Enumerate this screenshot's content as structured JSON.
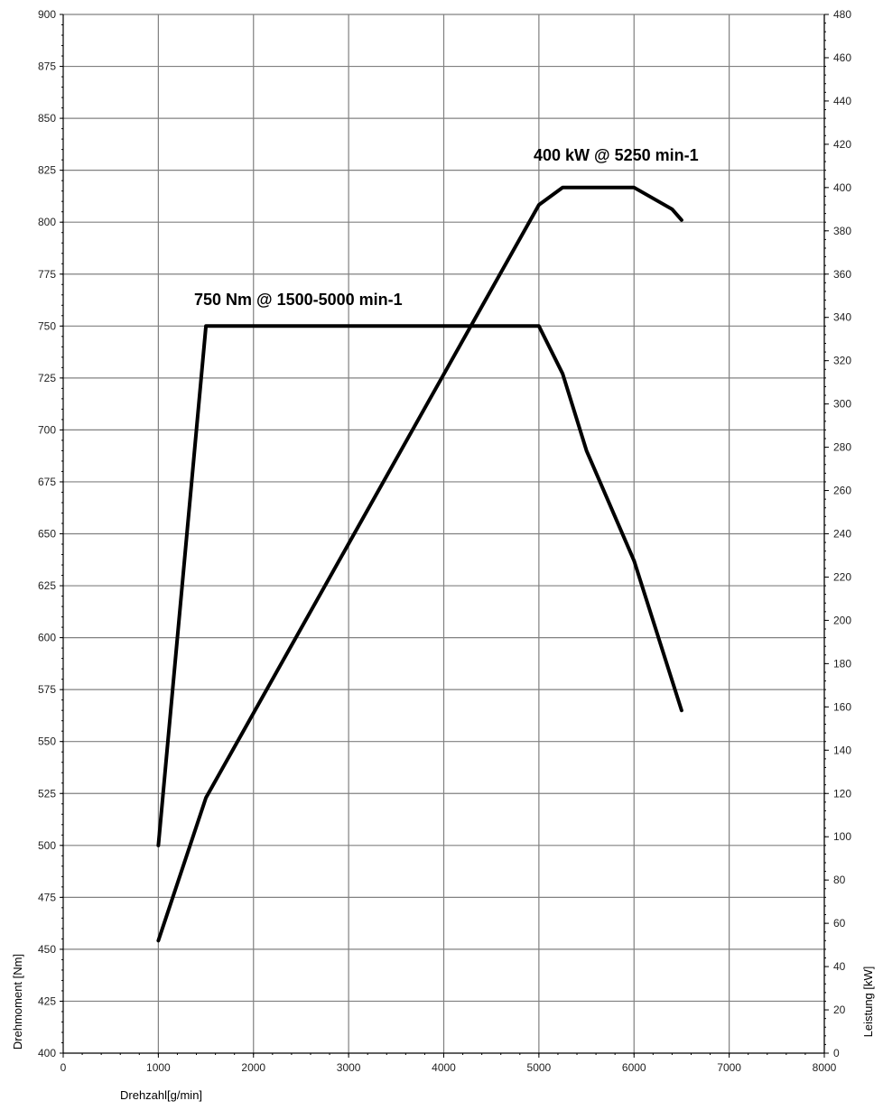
{
  "chart_data": {
    "type": "line",
    "title": "",
    "xlabel": "Drehzahl[g/min]",
    "ylabel_left": "Drehmoment [Nm]",
    "ylabel_right": "Leistung [kW]",
    "xlim": [
      0,
      8000
    ],
    "ylim_left": [
      400,
      900
    ],
    "ylim_right": [
      0,
      480
    ],
    "grid": true,
    "x_ticks": [
      "0",
      "1000",
      "2000",
      "3000",
      "4000",
      "5000",
      "6000",
      "7000",
      "8000"
    ],
    "y_left_ticks": [
      "400",
      "425",
      "450",
      "475",
      "500",
      "525",
      "550",
      "575",
      "600",
      "625",
      "650",
      "675",
      "700",
      "725",
      "750",
      "775",
      "800",
      "825",
      "850",
      "875",
      "900"
    ],
    "y_right_ticks": [
      "0",
      "20",
      "40",
      "60",
      "80",
      "100",
      "120",
      "140",
      "160",
      "180",
      "200",
      "220",
      "240",
      "260",
      "280",
      "300",
      "320",
      "340",
      "360",
      "380",
      "400",
      "420",
      "440",
      "460",
      "480"
    ],
    "series": [
      {
        "axis": "left",
        "x": [
          1000,
          1500,
          5000,
          5250,
          5500,
          6000,
          6500
        ],
        "y": [
          500,
          750,
          750,
          727,
          690,
          637,
          565
        ]
      },
      {
        "axis": "right",
        "x": [
          1000,
          1500,
          5000,
          5250,
          6000,
          6400,
          6500
        ],
        "y": [
          52,
          118,
          392,
          400,
          400,
          390,
          385
        ]
      }
    ],
    "annotations": [
      {
        "text": "750 Nm @ 1500-5000 min-1",
        "x": 1500,
        "y": 750,
        "axis": "left"
      },
      {
        "text": "400 kW @ 5250 min-1",
        "x": 5250,
        "y": 400,
        "axis": "right"
      }
    ]
  }
}
